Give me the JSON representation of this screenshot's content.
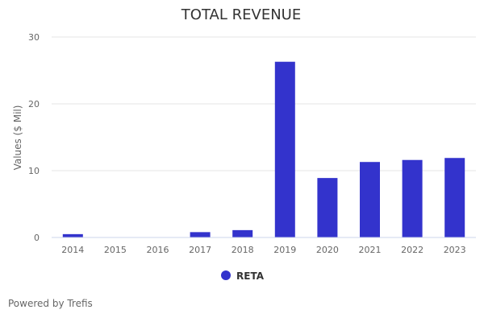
{
  "chart_data": {
    "type": "bar",
    "title": "TOTAL REVENUE",
    "xlabel": "",
    "ylabel": "Values ($ Mil)",
    "categories": [
      "2014",
      "2015",
      "2016",
      "2017",
      "2018",
      "2019",
      "2020",
      "2021",
      "2022",
      "2023"
    ],
    "series": [
      {
        "name": "RETA",
        "values": [
          0.5,
          0,
          0,
          0.8,
          1.1,
          26.3,
          8.9,
          11.3,
          11.6,
          11.9
        ]
      }
    ],
    "ylim": [
      0,
      30
    ],
    "yticks": [
      0,
      10,
      20,
      30
    ],
    "grid": true,
    "legend_position": "bottom"
  },
  "colors": {
    "series": "#3333cc",
    "grid": "#e6e6e6",
    "axis": "#ccd6eb"
  },
  "credits": "Powered by Trefis"
}
